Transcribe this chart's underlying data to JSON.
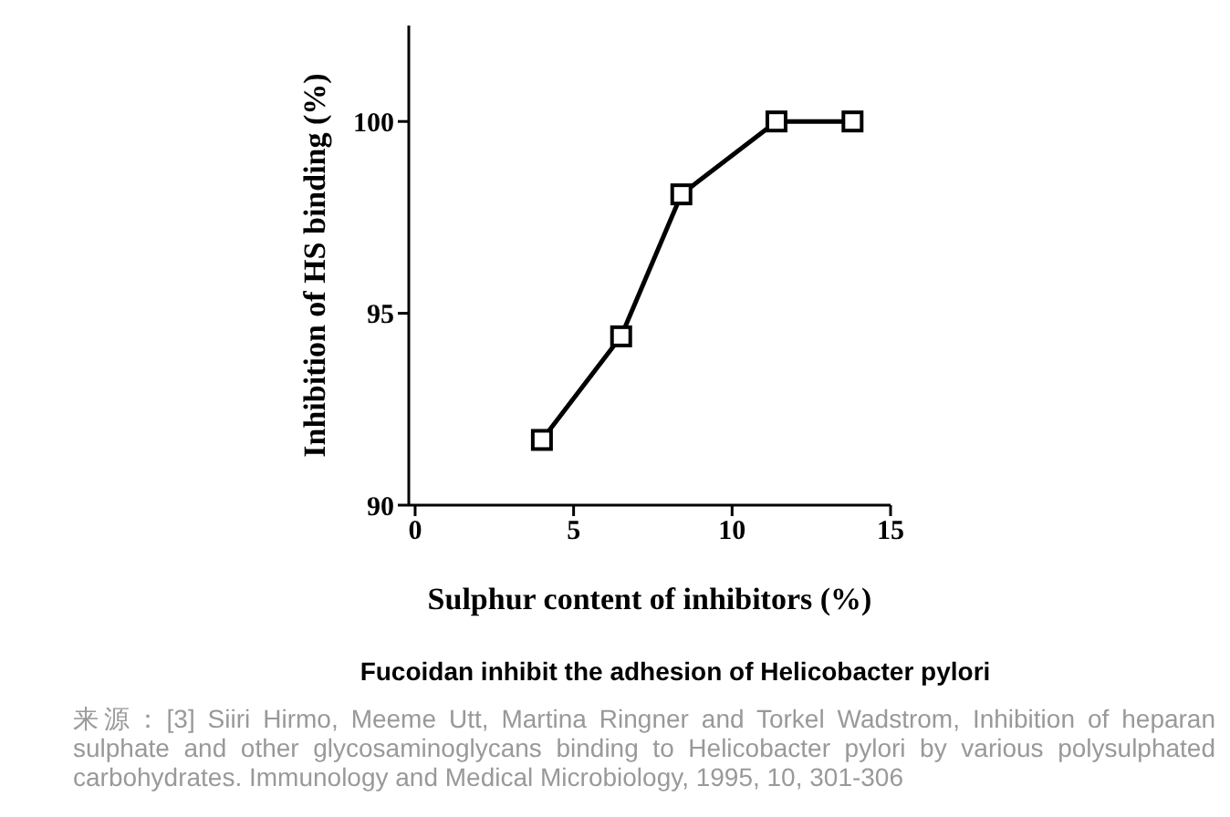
{
  "chart_data": {
    "type": "line",
    "title": "Fucoidan inhibit the adhesion of Helicobacter pylori",
    "xlabel": "Sulphur content of inhibitors (%)",
    "ylabel": "Inhibition of HS binding (%)",
    "x": [
      4.0,
      6.5,
      8.4,
      11.4,
      13.8
    ],
    "series": [
      {
        "color": "#000000",
        "values": [
          91.7,
          94.4,
          98.1,
          100.0,
          100.0
        ]
      }
    ],
    "xlim": [
      -0.2,
      15
    ],
    "xticks": [
      0,
      5,
      10,
      15
    ],
    "ylim": [
      90,
      102.5
    ],
    "yticks": [
      90,
      95,
      100
    ],
    "marker": "square",
    "line_style": "solid",
    "grid": false,
    "legend": false,
    "annotations": [
      "来源：[3] Siiri Hirmo, Meeme Utt, Martina Ringner and Torkel Wadstrom, Inhibition of heparan sulphate and other glycosaminoglycans binding to Helicobacter pylori by various polysulphated carbohydrates. Immunology and Medical Microbiology, 1995, 10, 301-306"
    ]
  }
}
